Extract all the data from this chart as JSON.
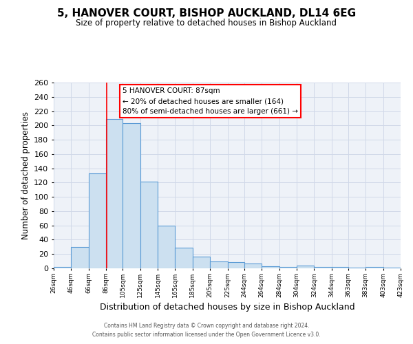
{
  "title": "5, HANOVER COURT, BISHOP AUCKLAND, DL14 6EG",
  "subtitle": "Size of property relative to detached houses in Bishop Auckland",
  "xlabel": "Distribution of detached houses by size in Bishop Auckland",
  "ylabel": "Number of detached properties",
  "bar_left_edges": [
    26,
    46,
    66,
    86,
    105,
    125,
    145,
    165,
    185,
    205,
    225,
    244,
    264,
    284,
    304,
    324,
    344,
    363,
    383,
    403
  ],
  "bar_widths": [
    20,
    20,
    20,
    19,
    20,
    20,
    20,
    20,
    20,
    20,
    19,
    20,
    20,
    20,
    20,
    20,
    19,
    20,
    20,
    20
  ],
  "bar_heights": [
    2,
    30,
    133,
    209,
    203,
    121,
    60,
    29,
    16,
    10,
    9,
    7,
    3,
    2,
    4,
    2,
    2,
    1,
    2,
    1
  ],
  "tick_labels": [
    "26sqm",
    "46sqm",
    "66sqm",
    "86sqm",
    "105sqm",
    "125sqm",
    "145sqm",
    "165sqm",
    "185sqm",
    "205sqm",
    "225sqm",
    "244sqm",
    "264sqm",
    "284sqm",
    "304sqm",
    "324sqm",
    "344sqm",
    "363sqm",
    "383sqm",
    "403sqm",
    "423sqm"
  ],
  "bar_face_color": "#cce0f0",
  "bar_edge_color": "#5b9bd5",
  "red_line_x": 87,
  "ylim": [
    0,
    260
  ],
  "yticks": [
    0,
    20,
    40,
    60,
    80,
    100,
    120,
    140,
    160,
    180,
    200,
    220,
    240,
    260
  ],
  "annotation_title": "5 HANOVER COURT: 87sqm",
  "annotation_line1": "← 20% of detached houses are smaller (164)",
  "annotation_line2": "80% of semi-detached houses are larger (661) →",
  "grid_color": "#d0d8e8",
  "background_color": "#eef2f8",
  "footer1": "Contains HM Land Registry data © Crown copyright and database right 2024.",
  "footer2": "Contains public sector information licensed under the Open Government Licence v3.0."
}
